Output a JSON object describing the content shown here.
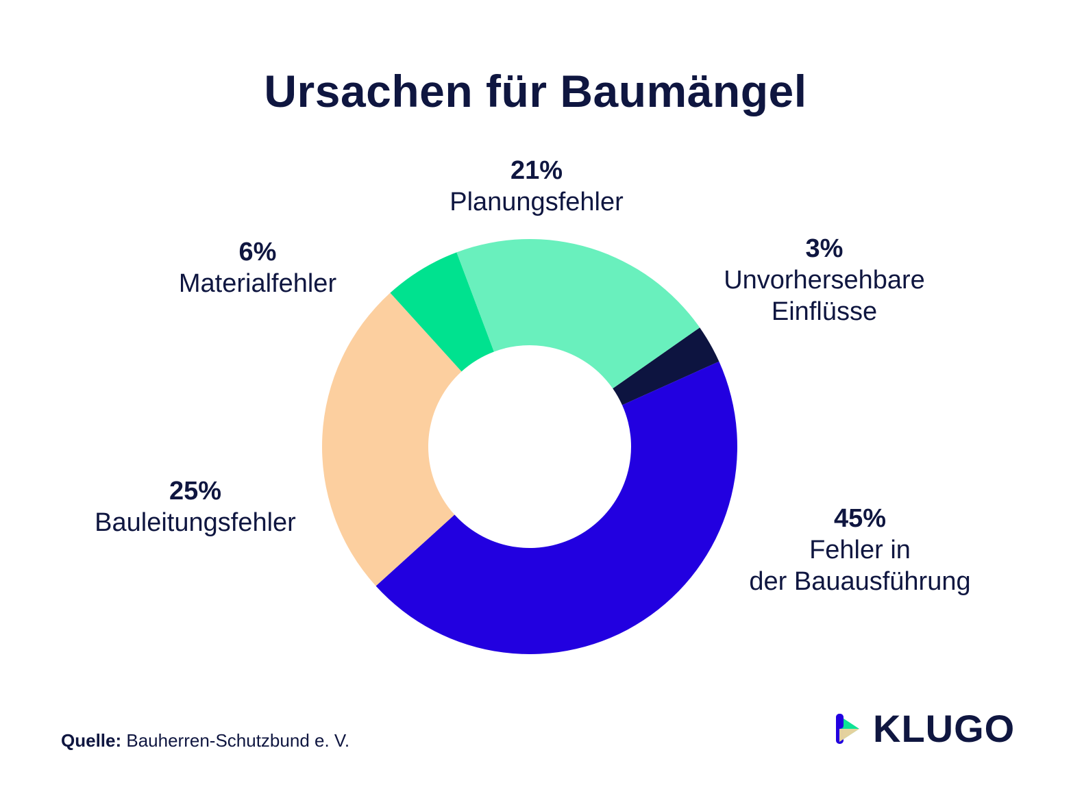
{
  "chart_data": {
    "type": "pie",
    "title": "Ursachen für Baumängel",
    "donut": true,
    "slices": [
      {
        "name": "Unvorhersehbare\nEinflüsse",
        "value": 3,
        "label": "3%",
        "color": "#0d1440"
      },
      {
        "name": "Fehler in\nder Bauausführung",
        "value": 45,
        "label": "45%",
        "color": "#2200e0"
      },
      {
        "name": "Bauleitungsfehler",
        "value": 25,
        "label": "25%",
        "color": "#fccf9f"
      },
      {
        "name": "Materialfehler",
        "value": 6,
        "label": "6%",
        "color": "#00e28f"
      },
      {
        "name": "Planungsfehler",
        "value": 21,
        "label": "21%",
        "color": "#69f0bd"
      }
    ]
  },
  "footer": {
    "source_label": "Quelle:",
    "source_text": "Bauherren-Schutzbund e. V."
  },
  "brand": {
    "name": "KLUGO",
    "icon": "klugo-play-logo-icon"
  }
}
